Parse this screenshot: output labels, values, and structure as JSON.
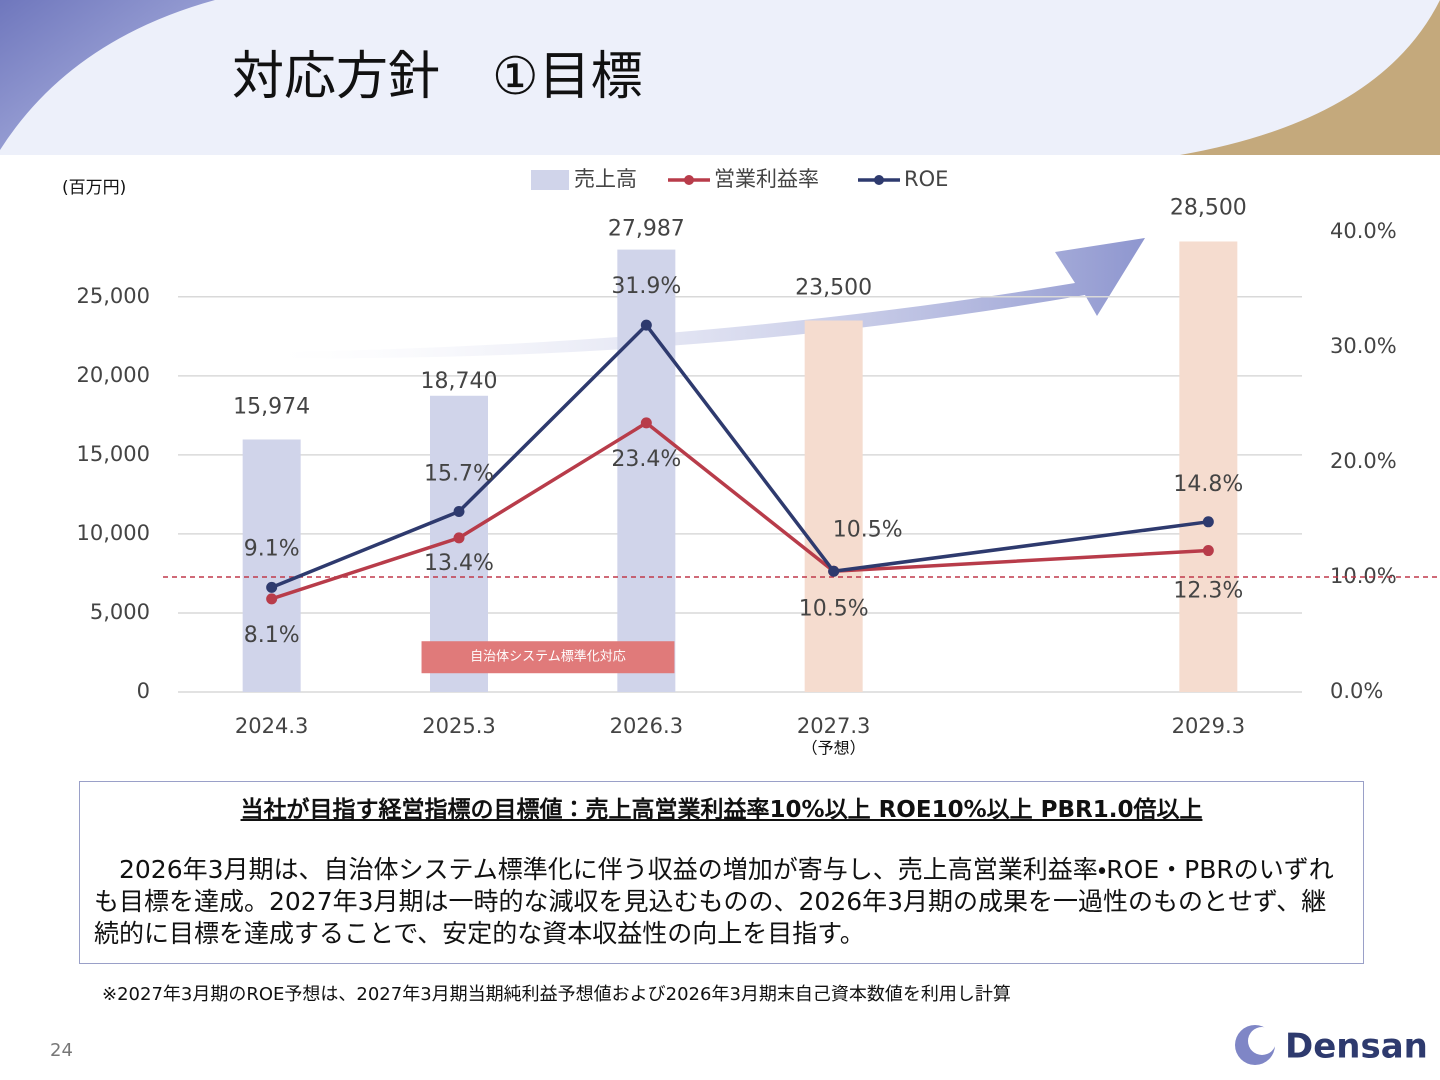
{
  "slide": {
    "title": "対応方針　①目標",
    "page_number": "24",
    "logo": "Densan"
  },
  "chart_data": {
    "type": "combo",
    "y_label": "(百万円)",
    "x": [
      2024.3,
      2025.3,
      2026.3,
      2027.3,
      2029.3
    ],
    "xlim": [
      2023.8,
      2029.8
    ],
    "x_annotations": [
      {
        "x": 2027.3,
        "text": "（予想）"
      }
    ],
    "ylim": [
      0,
      29100
    ],
    "yticks": [
      {
        "value": 0,
        "label": "0"
      },
      {
        "value": 5000,
        "label": "5,000"
      },
      {
        "value": 10000,
        "label": "10,000"
      },
      {
        "value": 15000,
        "label": "15,000"
      },
      {
        "value": 20000,
        "label": "20,000"
      },
      {
        "value": 25000,
        "label": "25,000"
      }
    ],
    "y2lim": [
      0,
      40
    ],
    "y2ticks": [
      {
        "value": 0,
        "label": "0.0%"
      },
      {
        "value": 10,
        "label": "10.0%"
      },
      {
        "value": 20,
        "label": "20.0%"
      },
      {
        "value": 30,
        "label": "30.0%"
      },
      {
        "value": 40,
        "label": "40.0%"
      }
    ],
    "grid": true,
    "legend": "top",
    "target_line": {
      "value": 10,
      "axis": "y2",
      "color": "#c0394b"
    },
    "annotation": {
      "text": "自治体システム標準化対応",
      "color": "#e07a7a",
      "x_from": 2025.1,
      "x_to": 2026.45,
      "y": 2200
    },
    "series": [
      {
        "name": "売上高",
        "type": "bar",
        "colors": [
          "#d0d4ea",
          "#d0d4ea",
          "#d0d4ea",
          "#f5dccf",
          "#f5dccf"
        ],
        "values": [
          15974,
          18740,
          27987,
          23500,
          28500
        ],
        "value_labels": [
          "15,974",
          "18,740",
          "27,987",
          "23,500",
          "28,500"
        ]
      },
      {
        "name": "営業利益率",
        "type": "line",
        "axis": "y2",
        "color": "#b83c4a",
        "values": [
          8.1,
          13.4,
          23.4,
          10.5,
          12.3
        ],
        "value_labels": [
          "8.1%",
          "13.4%",
          "23.4%",
          "10.5%",
          "12.3%"
        ]
      },
      {
        "name": "ROE",
        "type": "line",
        "axis": "y2",
        "color": "#2e3a6e",
        "values": [
          9.1,
          15.7,
          31.9,
          10.5,
          14.8
        ],
        "value_labels": [
          "9.1%",
          "15.7%",
          "31.9%",
          "10.5%",
          "14.8%"
        ]
      }
    ]
  },
  "textbox": {
    "heading": "当社が目指す経営指標の目標値：売上高営業利益率10%以上 ROE10%以上 PBR1.0倍以上",
    "body": "2026年3月期は、自治体システム標準化に伴う収益の増加が寄与し、売上高営業利益率・ROE・PBRのいずれも目標を達成。2027年3月期は一時的な減収を見込むものの、2026年3月期の成果を一過性のものとせず、継続的に目標を達成することで、安定的な資本収益性の向上を目指す。"
  },
  "footnote": "※2027年3月期のROE予想は、2027年3月期当期純利益予想値および2026年3月期末自己資本数値を利用し計算"
}
